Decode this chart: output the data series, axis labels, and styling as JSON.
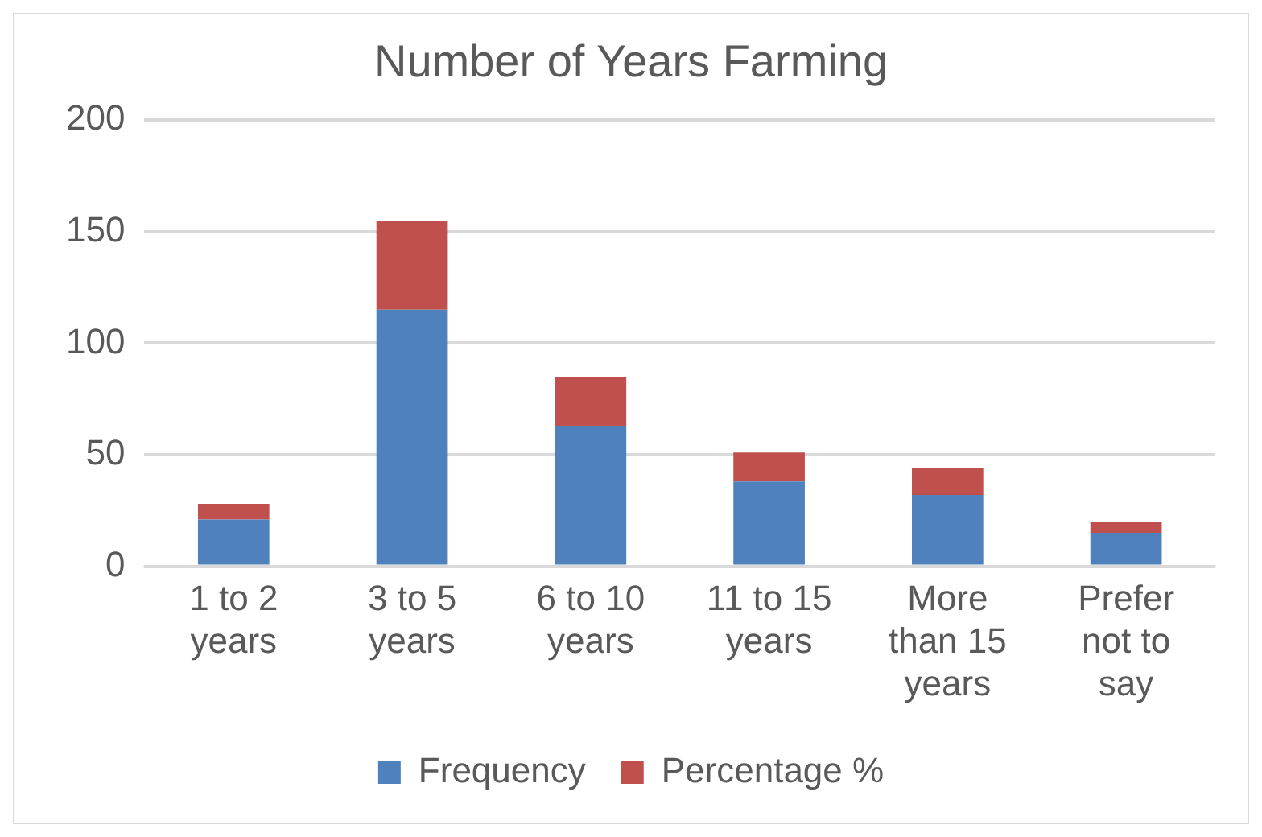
{
  "chart_data": {
    "type": "bar",
    "title": "Number of Years Farming",
    "categories": [
      "1 to 2 years",
      "3 to 5 years",
      "6 to 10 years",
      "11 to 15 years",
      "More than 15 years",
      "Prefer not to say"
    ],
    "series": [
      {
        "name": "Frequency",
        "color": "#4f81bd",
        "values": [
          21,
          115,
          63,
          38,
          32,
          15
        ]
      },
      {
        "name": "Percentage %",
        "color": "#c0504d",
        "values": [
          7,
          40,
          22,
          13,
          12,
          5
        ]
      }
    ],
    "stacked": true,
    "ylim": [
      0,
      200
    ],
    "yticks": [
      0,
      50,
      100,
      150,
      200
    ],
    "grid": "y",
    "legend": "bottom"
  }
}
